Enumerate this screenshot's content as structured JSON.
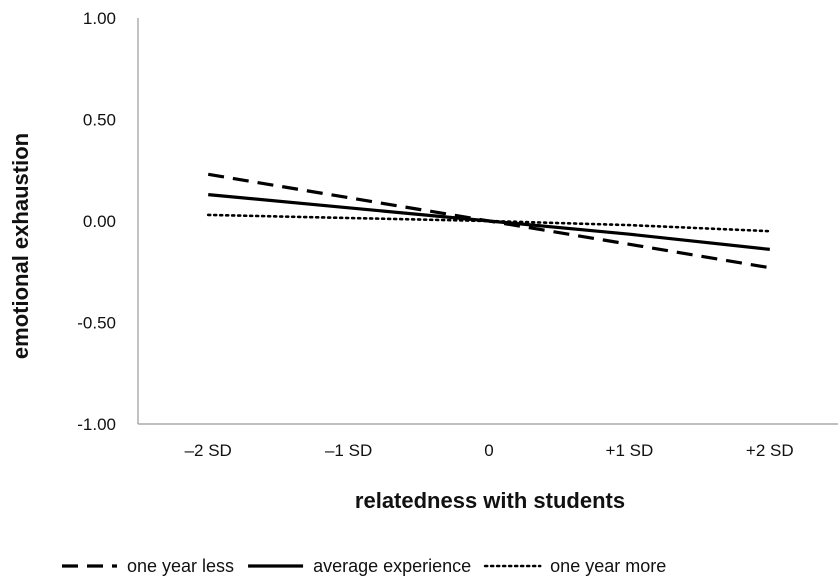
{
  "chart_data": {
    "type": "line",
    "title": "",
    "xlabel": "relatedness with students",
    "ylabel": "emotional exhaustion",
    "categories": [
      "–2 SD",
      "–1 SD",
      "0",
      "+1 SD",
      "+2 SD"
    ],
    "y_ticks": [
      "1.00",
      "0.50",
      "0.00",
      "-0.50",
      "-1.00"
    ],
    "ylim": [
      -1.0,
      1.0
    ],
    "grid": false,
    "legend_position": "bottom",
    "series": [
      {
        "name": "one year less",
        "style": "dashed",
        "color": "#000000",
        "values": [
          0.23,
          0.115,
          0.0,
          -0.115,
          -0.23
        ]
      },
      {
        "name": "average experience",
        "style": "solid",
        "color": "#000000",
        "values": [
          0.13,
          0.065,
          0.0,
          -0.065,
          -0.14
        ]
      },
      {
        "name": "one year more",
        "style": "dotted",
        "color": "#000000",
        "values": [
          0.03,
          0.015,
          0.0,
          -0.02,
          -0.05
        ]
      }
    ]
  }
}
